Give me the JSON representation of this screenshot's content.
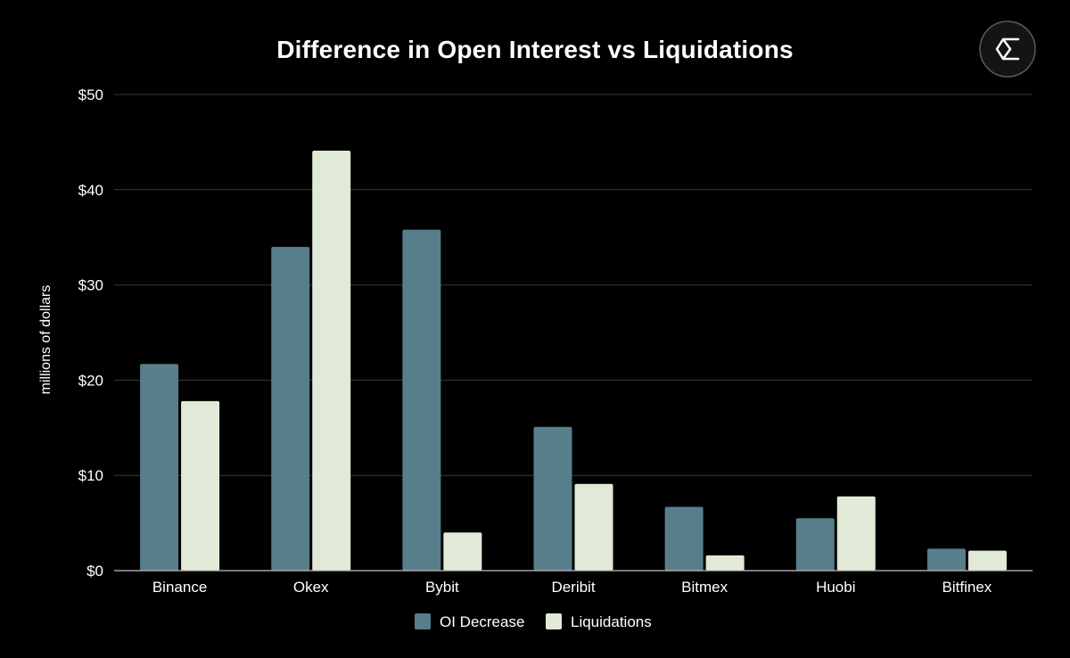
{
  "chart_data": {
    "type": "bar",
    "title": "Difference in Open Interest vs Liquidations",
    "xlabel": "",
    "ylabel": "millions of dollars",
    "ylim": [
      0,
      50
    ],
    "yticks": [
      0,
      10,
      20,
      30,
      40,
      50
    ],
    "ytick_labels": [
      "$0",
      "$10",
      "$20",
      "$30",
      "$40",
      "$50"
    ],
    "grid": true,
    "legend_position": "bottom",
    "categories": [
      "Binance",
      "Okex",
      "Bybit",
      "Deribit",
      "Bitmex",
      "Huobi",
      "Bitfinex"
    ],
    "series": [
      {
        "name": "OI Decrease",
        "color": "#577e8b",
        "values": [
          21.7,
          34.0,
          35.8,
          15.1,
          6.7,
          5.5,
          2.3
        ]
      },
      {
        "name": "Liquidations",
        "color": "#e0ead7",
        "values": [
          17.8,
          44.1,
          4.0,
          9.1,
          1.6,
          7.8,
          2.1
        ]
      }
    ]
  },
  "colors": {
    "background": "#000000",
    "gridline": "#3a3a3a",
    "axis": "#bfbfbf",
    "text": "#ffffff"
  },
  "logo": {
    "icon": "sigma-hexagon-logo-icon"
  }
}
